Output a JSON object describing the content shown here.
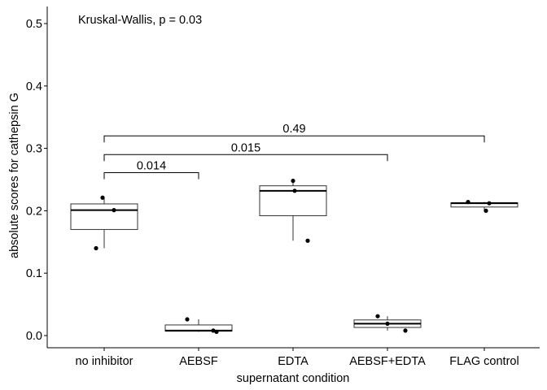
{
  "chart_data": {
    "type": "boxplot",
    "annotation": "Kruskal-Wallis, p = 0.03",
    "xlabel": "supernatant condition",
    "ylabel": "absolute scores for cathepsin G",
    "ylim": [
      -0.02,
      0.525
    ],
    "yticks": [
      0.0,
      0.1,
      0.2,
      0.3,
      0.4,
      0.5
    ],
    "ytick_labels": [
      "0.0",
      "0.1",
      "0.2",
      "0.3",
      "0.4",
      "0.5"
    ],
    "categories": [
      "no inhibitor",
      "AEBSF",
      "EDTA",
      "AEBSF+EDTA",
      "FLAG control"
    ],
    "boxes": [
      {
        "category": "no inhibitor",
        "min": 0.14,
        "q1": 0.17,
        "median": 0.201,
        "q3": 0.211,
        "max": 0.221,
        "points": [
          0.221,
          0.201,
          0.14
        ]
      },
      {
        "category": "AEBSF",
        "min": 0.006,
        "q1": 0.007,
        "median": 0.008,
        "q3": 0.017,
        "max": 0.026,
        "points": [
          0.026,
          0.008,
          0.006
        ]
      },
      {
        "category": "EDTA",
        "min": 0.152,
        "q1": 0.192,
        "median": 0.232,
        "q3": 0.24,
        "max": 0.248,
        "points": [
          0.248,
          0.232,
          0.152
        ]
      },
      {
        "category": "AEBSF+EDTA",
        "min": 0.008,
        "q1": 0.013,
        "median": 0.019,
        "q3": 0.025,
        "max": 0.031,
        "points": [
          0.031,
          0.019,
          0.008
        ]
      },
      {
        "category": "FLAG control",
        "min": 0.2,
        "q1": 0.206,
        "median": 0.212,
        "q3": 0.213,
        "max": 0.214,
        "points": [
          0.214,
          0.212,
          0.2
        ]
      }
    ],
    "comparisons": [
      {
        "group1": "no inhibitor",
        "group2": "AEBSF",
        "label": "0.014",
        "y": 0.261
      },
      {
        "group1": "no inhibitor",
        "group2": "AEBSF+EDTA",
        "label": "0.015",
        "y": 0.29
      },
      {
        "group1": "no inhibitor",
        "group2": "FLAG control",
        "label": "0.49",
        "y": 0.32
      }
    ],
    "grid": false
  }
}
